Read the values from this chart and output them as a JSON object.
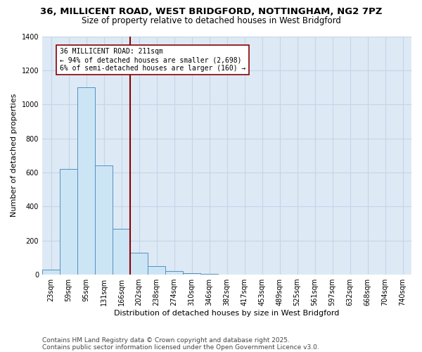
{
  "title_line1": "36, MILLICENT ROAD, WEST BRIDGFORD, NOTTINGHAM, NG2 7PZ",
  "title_line2": "Size of property relative to detached houses in West Bridgford",
  "xlabel": "Distribution of detached houses by size in West Bridgford",
  "ylabel": "Number of detached properties",
  "footnote_line1": "Contains HM Land Registry data © Crown copyright and database right 2025.",
  "footnote_line2": "Contains public sector information licensed under the Open Government Licence v3.0.",
  "categories": [
    "23sqm",
    "59sqm",
    "95sqm",
    "131sqm",
    "166sqm",
    "202sqm",
    "238sqm",
    "274sqm",
    "310sqm",
    "346sqm",
    "382sqm",
    "417sqm",
    "453sqm",
    "489sqm",
    "525sqm",
    "561sqm",
    "597sqm",
    "632sqm",
    "668sqm",
    "704sqm",
    "740sqm"
  ],
  "bar_values": [
    30,
    620,
    1100,
    640,
    270,
    130,
    50,
    20,
    10,
    5,
    0,
    0,
    0,
    0,
    0,
    0,
    0,
    0,
    0,
    0,
    0
  ],
  "bar_facecolor": "#cce5f5",
  "bar_edgecolor": "#5590c0",
  "background_color": "#ddeaf5",
  "grid_color": "#c5d5e8",
  "vline_x_index": 5,
  "vline_color": "#8b0000",
  "annotation_text": "36 MILLICENT ROAD: 211sqm\n← 94% of detached houses are smaller (2,698)\n6% of semi-detached houses are larger (160) →",
  "annotation_box_color": "#8b0000",
  "ylim": [
    0,
    1400
  ],
  "yticks": [
    0,
    200,
    400,
    600,
    800,
    1000,
    1200,
    1400
  ],
  "title_fontsize": 9.5,
  "subtitle_fontsize": 8.5,
  "axis_label_fontsize": 8,
  "tick_fontsize": 7,
  "footnote_fontsize": 6.5,
  "annotation_fontsize": 7
}
